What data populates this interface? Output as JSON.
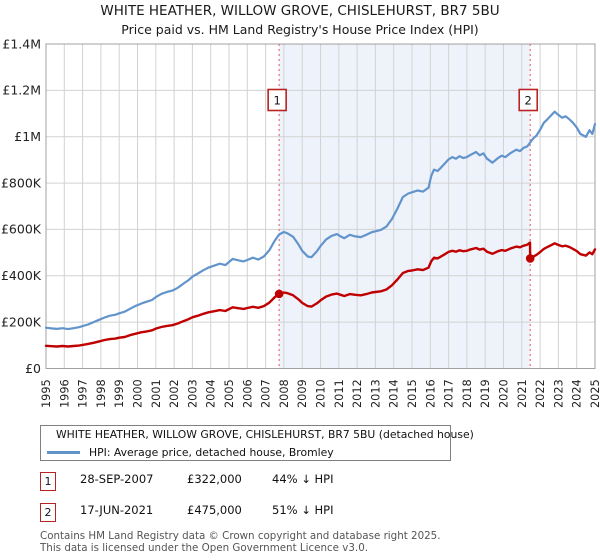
{
  "title": "WHITE HEATHER, WILLOW GROVE, CHISLEHURST, BR7 5BU",
  "subtitle": "Price paid vs. HM Land Registry's House Price Index (HPI)",
  "colors": {
    "property_line": "#c00000",
    "hpi_line": "#6294cc",
    "event_line": "#e87070",
    "shade": "#eef2fb",
    "grid": "#d2d2d2",
    "plot_border": "#a0a0a0",
    "marker_border": "#bb2222",
    "axis_text": "#222222"
  },
  "chart_data": {
    "type": "line",
    "xlim": [
      1995,
      2025
    ],
    "ylim": [
      0,
      1400000
    ],
    "x_ticks": [
      1995,
      1996,
      1997,
      1998,
      1999,
      2000,
      2001,
      2002,
      2003,
      2004,
      2005,
      2006,
      2007,
      2008,
      2009,
      2010,
      2011,
      2012,
      2013,
      2014,
      2015,
      2016,
      2017,
      2018,
      2019,
      2020,
      2021,
      2022,
      2023,
      2024,
      2025
    ],
    "y_ticks": [
      {
        "v": 0,
        "label": "£0"
      },
      {
        "v": 200,
        "label": "£200K"
      },
      {
        "v": 400,
        "label": "£400K"
      },
      {
        "v": 600,
        "label": "£600K"
      },
      {
        "v": 800,
        "label": "£800K"
      },
      {
        "v": 1000,
        "label": "£1M"
      },
      {
        "v": 1200,
        "label": "£1.2M"
      },
      {
        "v": 1400,
        "label": "£1.4M"
      }
    ],
    "shade_region": [
      2007.74,
      2021.46
    ],
    "sales": [
      {
        "label": "1",
        "x": 2007.74,
        "price_k": 322
      },
      {
        "label": "2",
        "x": 2021.46,
        "price_k": 475
      }
    ],
    "series": [
      {
        "name": "HPI: Average price, detached house, Bromley",
        "color_key": "hpi_line",
        "width": 2.2,
        "points": [
          [
            1995.0,
            176
          ],
          [
            1995.3,
            173
          ],
          [
            1995.6,
            171
          ],
          [
            1995.9,
            174
          ],
          [
            1996.2,
            170
          ],
          [
            1996.5,
            174
          ],
          [
            1996.8,
            178
          ],
          [
            1997.0,
            183
          ],
          [
            1997.3,
            190
          ],
          [
            1997.6,
            200
          ],
          [
            1997.9,
            210
          ],
          [
            1998.2,
            220
          ],
          [
            1998.5,
            228
          ],
          [
            1998.8,
            232
          ],
          [
            1999.0,
            238
          ],
          [
            1999.3,
            245
          ],
          [
            1999.6,
            258
          ],
          [
            1999.9,
            270
          ],
          [
            2000.2,
            280
          ],
          [
            2000.5,
            288
          ],
          [
            2000.8,
            296
          ],
          [
            2001.0,
            308
          ],
          [
            2001.3,
            322
          ],
          [
            2001.6,
            330
          ],
          [
            2001.9,
            336
          ],
          [
            2002.2,
            348
          ],
          [
            2002.5,
            366
          ],
          [
            2002.8,
            382
          ],
          [
            2003.0,
            396
          ],
          [
            2003.3,
            410
          ],
          [
            2003.6,
            424
          ],
          [
            2003.9,
            436
          ],
          [
            2004.2,
            444
          ],
          [
            2004.5,
            452
          ],
          [
            2004.8,
            446
          ],
          [
            2005.2,
            473
          ],
          [
            2005.5,
            467
          ],
          [
            2005.8,
            462
          ],
          [
            2006.0,
            468
          ],
          [
            2006.3,
            478
          ],
          [
            2006.6,
            470
          ],
          [
            2006.9,
            483
          ],
          [
            2007.2,
            510
          ],
          [
            2007.5,
            552
          ],
          [
            2007.74,
            578
          ],
          [
            2008.0,
            589
          ],
          [
            2008.2,
            583
          ],
          [
            2008.5,
            568
          ],
          [
            2008.8,
            535
          ],
          [
            2009.0,
            508
          ],
          [
            2009.3,
            483
          ],
          [
            2009.5,
            480
          ],
          [
            2009.8,
            505
          ],
          [
            2010.0,
            528
          ],
          [
            2010.3,
            556
          ],
          [
            2010.6,
            572
          ],
          [
            2010.9,
            580
          ],
          [
            2011.1,
            570
          ],
          [
            2011.3,
            562
          ],
          [
            2011.6,
            577
          ],
          [
            2011.9,
            570
          ],
          [
            2012.2,
            567
          ],
          [
            2012.5,
            577
          ],
          [
            2012.8,
            588
          ],
          [
            2013.0,
            592
          ],
          [
            2013.3,
            598
          ],
          [
            2013.6,
            612
          ],
          [
            2013.9,
            645
          ],
          [
            2014.2,
            690
          ],
          [
            2014.5,
            740
          ],
          [
            2014.8,
            755
          ],
          [
            2015.0,
            760
          ],
          [
            2015.3,
            768
          ],
          [
            2015.6,
            763
          ],
          [
            2015.9,
            780
          ],
          [
            2016.05,
            830
          ],
          [
            2016.2,
            858
          ],
          [
            2016.4,
            852
          ],
          [
            2016.6,
            868
          ],
          [
            2016.8,
            885
          ],
          [
            2017.0,
            902
          ],
          [
            2017.2,
            912
          ],
          [
            2017.4,
            905
          ],
          [
            2017.6,
            916
          ],
          [
            2017.8,
            908
          ],
          [
            2018.0,
            912
          ],
          [
            2018.2,
            922
          ],
          [
            2018.5,
            934
          ],
          [
            2018.7,
            920
          ],
          [
            2018.9,
            928
          ],
          [
            2019.1,
            905
          ],
          [
            2019.4,
            888
          ],
          [
            2019.7,
            908
          ],
          [
            2019.9,
            918
          ],
          [
            2020.1,
            912
          ],
          [
            2020.4,
            930
          ],
          [
            2020.7,
            944
          ],
          [
            2020.9,
            938
          ],
          [
            2021.1,
            952
          ],
          [
            2021.3,
            958
          ],
          [
            2021.46,
            975
          ],
          [
            2021.6,
            990
          ],
          [
            2021.8,
            1005
          ],
          [
            2022.0,
            1030
          ],
          [
            2022.2,
            1060
          ],
          [
            2022.4,
            1075
          ],
          [
            2022.6,
            1092
          ],
          [
            2022.8,
            1108
          ],
          [
            2023.0,
            1094
          ],
          [
            2023.2,
            1082
          ],
          [
            2023.4,
            1088
          ],
          [
            2023.6,
            1075
          ],
          [
            2023.8,
            1060
          ],
          [
            2024.0,
            1040
          ],
          [
            2024.2,
            1012
          ],
          [
            2024.5,
            999
          ],
          [
            2024.7,
            1028
          ],
          [
            2024.85,
            1012
          ],
          [
            2025.0,
            1055
          ]
        ]
      },
      {
        "name": "WHITE HEATHER, WILLOW GROVE, CHISLEHURST, BR7 5BU (detached house)",
        "color_key": "property_line",
        "width": 2.4,
        "points": [
          [
            1995.0,
            98
          ],
          [
            1995.3,
            96
          ],
          [
            1995.6,
            95
          ],
          [
            1995.9,
            97
          ],
          [
            1996.2,
            95
          ],
          [
            1996.5,
            97
          ],
          [
            1996.8,
            99
          ],
          [
            1997.0,
            102
          ],
          [
            1997.3,
            106
          ],
          [
            1997.6,
            111
          ],
          [
            1997.9,
            117
          ],
          [
            1998.2,
            123
          ],
          [
            1998.5,
            127
          ],
          [
            1998.8,
            129
          ],
          [
            1999.0,
            133
          ],
          [
            1999.3,
            136
          ],
          [
            1999.6,
            144
          ],
          [
            1999.9,
            150
          ],
          [
            2000.2,
            156
          ],
          [
            2000.5,
            160
          ],
          [
            2000.8,
            165
          ],
          [
            2001.0,
            172
          ],
          [
            2001.3,
            179
          ],
          [
            2001.6,
            184
          ],
          [
            2001.9,
            187
          ],
          [
            2002.2,
            194
          ],
          [
            2002.5,
            204
          ],
          [
            2002.8,
            213
          ],
          [
            2003.0,
            221
          ],
          [
            2003.3,
            228
          ],
          [
            2003.6,
            236
          ],
          [
            2003.9,
            243
          ],
          [
            2004.2,
            247
          ],
          [
            2004.5,
            252
          ],
          [
            2004.8,
            248
          ],
          [
            2005.2,
            264
          ],
          [
            2005.5,
            260
          ],
          [
            2005.8,
            257
          ],
          [
            2006.0,
            261
          ],
          [
            2006.3,
            266
          ],
          [
            2006.6,
            262
          ],
          [
            2006.9,
            269
          ],
          [
            2007.2,
            284
          ],
          [
            2007.5,
            308
          ],
          [
            2007.74,
            322
          ],
          [
            2008.0,
            328
          ],
          [
            2008.2,
            325
          ],
          [
            2008.5,
            316
          ],
          [
            2008.8,
            298
          ],
          [
            2009.0,
            283
          ],
          [
            2009.3,
            269
          ],
          [
            2009.5,
            267
          ],
          [
            2009.8,
            281
          ],
          [
            2010.0,
            294
          ],
          [
            2010.3,
            310
          ],
          [
            2010.6,
            319
          ],
          [
            2010.9,
            323
          ],
          [
            2011.1,
            318
          ],
          [
            2011.3,
            313
          ],
          [
            2011.6,
            321
          ],
          [
            2011.9,
            318
          ],
          [
            2012.2,
            316
          ],
          [
            2012.5,
            321
          ],
          [
            2012.8,
            328
          ],
          [
            2013.0,
            330
          ],
          [
            2013.3,
            333
          ],
          [
            2013.6,
            341
          ],
          [
            2013.9,
            359
          ],
          [
            2014.2,
            384
          ],
          [
            2014.5,
            412
          ],
          [
            2014.8,
            421
          ],
          [
            2015.0,
            423
          ],
          [
            2015.3,
            428
          ],
          [
            2015.6,
            425
          ],
          [
            2015.9,
            435
          ],
          [
            2016.05,
            462
          ],
          [
            2016.2,
            478
          ],
          [
            2016.4,
            475
          ],
          [
            2016.6,
            484
          ],
          [
            2016.8,
            493
          ],
          [
            2017.0,
            503
          ],
          [
            2017.2,
            508
          ],
          [
            2017.4,
            504
          ],
          [
            2017.6,
            510
          ],
          [
            2017.8,
            506
          ],
          [
            2018.0,
            508
          ],
          [
            2018.2,
            514
          ],
          [
            2018.5,
            520
          ],
          [
            2018.7,
            513
          ],
          [
            2018.9,
            517
          ],
          [
            2019.1,
            504
          ],
          [
            2019.4,
            495
          ],
          [
            2019.7,
            506
          ],
          [
            2019.9,
            511
          ],
          [
            2020.1,
            508
          ],
          [
            2020.4,
            518
          ],
          [
            2020.7,
            526
          ],
          [
            2020.9,
            523
          ],
          [
            2021.1,
            530
          ],
          [
            2021.3,
            534
          ],
          [
            2021.45,
            543
          ],
          [
            2021.46,
            475
          ],
          [
            2021.6,
            482
          ],
          [
            2021.8,
            490
          ],
          [
            2022.0,
            502
          ],
          [
            2022.2,
            516
          ],
          [
            2022.4,
            524
          ],
          [
            2022.6,
            532
          ],
          [
            2022.8,
            540
          ],
          [
            2023.0,
            533
          ],
          [
            2023.2,
            527
          ],
          [
            2023.4,
            530
          ],
          [
            2023.6,
            524
          ],
          [
            2023.8,
            516
          ],
          [
            2024.0,
            507
          ],
          [
            2024.2,
            493
          ],
          [
            2024.5,
            487
          ],
          [
            2024.7,
            501
          ],
          [
            2024.85,
            493
          ],
          [
            2025.0,
            514
          ]
        ]
      }
    ]
  },
  "legend": {
    "property": "WHITE HEATHER, WILLOW GROVE, CHISLEHURST, BR7 5BU (detached house)",
    "hpi": "HPI: Average price, detached house, Bromley"
  },
  "sales_table": {
    "rows": [
      {
        "num": "1",
        "date": "28-SEP-2007",
        "price": "£322,000",
        "diff": "44% ↓ HPI"
      },
      {
        "num": "2",
        "date": "17-JUN-2021",
        "price": "£475,000",
        "diff": "51% ↓ HPI"
      }
    ]
  },
  "footer": {
    "line1": "Contains HM Land Registry data © Crown copyright and database right 2025.",
    "line2": "This data is licensed under the Open Government Licence v3.0."
  }
}
